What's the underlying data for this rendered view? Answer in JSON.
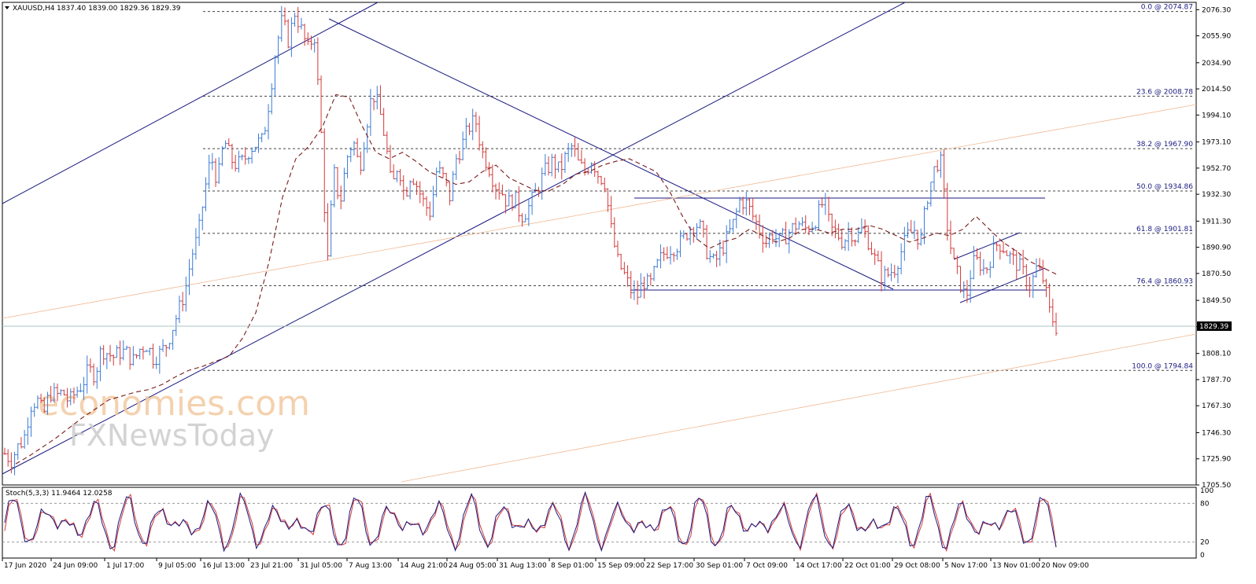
{
  "header": {
    "symbol_label": "XAUUSD,H4",
    "ohlc_label": "1837.40 1839.00 1829.36 1829.39"
  },
  "stoch": {
    "label": "Stoch(5,3,3) 11.9464 12.0258"
  },
  "watermark": {
    "line1": "economies.com",
    "line2": "FXNewsToday"
  },
  "colors": {
    "bull": "#3a7bd5",
    "bear": "#d43a3a",
    "ma": "#7a1c1c",
    "channel": "#1a1a80",
    "fib": "#444444",
    "rail": "#f0b890"
  },
  "chart_data": {
    "type": "candlestick",
    "symbol": "XAUUSD",
    "timeframe": "H4",
    "current_price": 1829.39,
    "current_price_label": "1829.39",
    "ylim": [
      1705.5,
      2082.0
    ],
    "y_ticks": [
      "2076.30",
      "2055.90",
      "2034.90",
      "2014.50",
      "1994.10",
      "1973.10",
      "1952.70",
      "1932.30",
      "1911.30",
      "1890.90",
      "1870.50",
      "1849.50",
      "1829.10",
      "1808.10",
      "1787.70",
      "1767.30",
      "1746.30",
      "1725.90",
      "1705.50"
    ],
    "y_tick_values": [
      2076.3,
      2055.9,
      2034.9,
      2014.5,
      1994.1,
      1973.1,
      1952.7,
      1932.3,
      1911.3,
      1890.9,
      1870.5,
      1849.5,
      1829.1,
      1808.1,
      1787.7,
      1767.3,
      1746.3,
      1725.9,
      1705.5
    ],
    "x_ticks": [
      "17 Jun 2020",
      "24 Jun 09:00",
      "1 Jul 17:00",
      "9 Jul 05:00",
      "16 Jul 13:00",
      "23 Jul 21:00",
      "31 Jul 05:00",
      "7 Aug 13:00",
      "14 Aug 21:00",
      "24 Aug 05:00",
      "31 Aug 13:00",
      "8 Sep 01:00",
      "15 Sep 09:00",
      "22 Sep 17:00",
      "30 Sep 01:00",
      "7 Oct 09:00",
      "14 Oct 17:00",
      "22 Oct 01:00",
      "29 Oct 08:00",
      "5 Nov 17:00",
      "13 Nov 01:00",
      "20 Nov 09:00"
    ],
    "fib_levels": [
      {
        "label": "0.0 @ 2074.87",
        "value": 2074.87
      },
      {
        "label": "23.6 @ 2008.78",
        "value": 2008.78
      },
      {
        "label": "38.2 @ 1967.90",
        "value": 1967.9
      },
      {
        "label": "50.0 @ 1934.86",
        "value": 1934.86
      },
      {
        "label": "61.8 @ 1901.81",
        "value": 1901.81
      },
      {
        "label": "76.4 @ 1860.93",
        "value": 1860.93
      },
      {
        "label": "100.0 @ 1794.84",
        "value": 1794.84
      }
    ],
    "price_path": [
      1730,
      1725,
      1735,
      1742,
      1768,
      1772,
      1760,
      1778,
      1775,
      1778,
      1770,
      1778,
      1784,
      1795,
      1792,
      1812,
      1808,
      1805,
      1810,
      1808,
      1802,
      1812,
      1815,
      1805,
      1808,
      1814,
      1828,
      1842,
      1858,
      1885,
      1900,
      1935,
      1962,
      1942,
      1975,
      1960,
      1955,
      1958,
      1968,
      1972,
      1974,
      2006,
      2045,
      2068,
      2052,
      2075,
      2060,
      2045,
      2058,
      1985,
      1875,
      1950,
      1925,
      1960,
      1975,
      1952,
      1985,
      2012,
      2000,
      1975,
      1935,
      1958,
      1930,
      1950,
      1938,
      1925,
      1918,
      1952,
      1945,
      1930,
      1960,
      1972,
      1985,
      1990,
      1965,
      1955,
      1940,
      1935,
      1925,
      1930,
      1915,
      1920,
      1930,
      1942,
      1952,
      1958,
      1950,
      1962,
      1970,
      1955,
      1950,
      1960,
      1948,
      1942,
      1905,
      1880,
      1870,
      1858,
      1852,
      1865,
      1860,
      1875,
      1885,
      1890,
      1892,
      1895,
      1905,
      1910,
      1905,
      1885,
      1878,
      1888,
      1898,
      1910,
      1928,
      1925,
      1915,
      1905,
      1895,
      1902,
      1895,
      1900,
      1905,
      1910,
      1905,
      1908,
      1915,
      1928,
      1905,
      1902,
      1895,
      1905,
      1898,
      1905,
      1895,
      1880,
      1868,
      1870,
      1875,
      1888,
      1900,
      1905,
      1895,
      1930,
      1950,
      1962,
      1912,
      1880,
      1865,
      1850,
      1878,
      1880,
      1872,
      1885,
      1895,
      1890,
      1882,
      1878,
      1870,
      1860,
      1875,
      1866,
      1840,
      1829
    ],
    "ma_path": [
      1722,
      1728,
      1735,
      1742,
      1750,
      1758,
      1765,
      1772,
      1775,
      1778,
      1780,
      1784,
      1790,
      1795,
      1798,
      1802,
      1806,
      1820,
      1840,
      1880,
      1930,
      1960,
      1970,
      1985,
      2010,
      2008,
      1985,
      1965,
      1960,
      1965,
      1958,
      1950,
      1945,
      1940,
      1942,
      1950,
      1955,
      1945,
      1940,
      1935,
      1935,
      1940,
      1948,
      1950,
      1955,
      1958,
      1960,
      1955,
      1950,
      1935,
      1915,
      1898,
      1890,
      1895,
      1898,
      1905,
      1900,
      1895,
      1898,
      1905,
      1905,
      1902,
      1905,
      1905,
      1908,
      1905,
      1900,
      1895,
      1898,
      1902,
      1900,
      1905,
      1915,
      1905,
      1895,
      1888,
      1880,
      1875,
      1870
    ],
    "stoch_levels": [
      80,
      20
    ],
    "stoch_axis_labels": [
      "100",
      "80",
      "20",
      "0"
    ],
    "stoch_axis_values": [
      100,
      80,
      20,
      0
    ]
  }
}
